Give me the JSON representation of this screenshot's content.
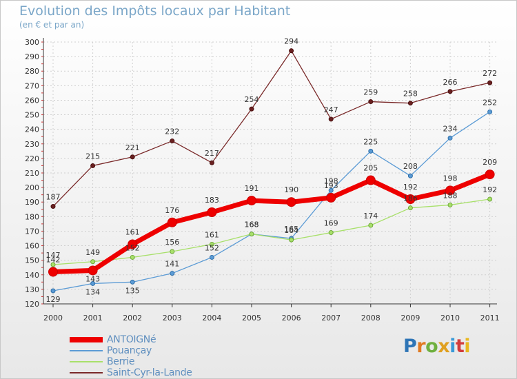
{
  "chart_data": {
    "type": "line",
    "title": "Evolution des Impôts locaux par Habitant",
    "subtitle": "(en € et par an)",
    "xlabel": "",
    "ylabel": "",
    "categories": [
      "2000",
      "2001",
      "2002",
      "2003",
      "2004",
      "2005",
      "2006",
      "2007",
      "2008",
      "2009",
      "2010",
      "2011"
    ],
    "ylim": [
      120,
      300
    ],
    "yticks": [
      "120",
      "130",
      "140",
      "150",
      "160",
      "170",
      "180",
      "190",
      "200",
      "210",
      "220",
      "230",
      "240",
      "250",
      "260",
      "270",
      "280",
      "290",
      "300"
    ],
    "grid": true,
    "legend_position": "bottom-left",
    "series": [
      {
        "name": "Saint-Cyr-la-Lande",
        "color": "#7a2a2a",
        "values": [
          187,
          215,
          221,
          232,
          217,
          254,
          294,
          247,
          259,
          258,
          266,
          272
        ]
      },
      {
        "name": "Pouançay",
        "color": "#5b9bd5",
        "values": [
          129,
          134,
          135,
          141,
          152,
          168,
          165,
          198,
          225,
          208,
          234,
          252
        ]
      },
      {
        "name": "Berrie",
        "color": "#a8e06a",
        "values": [
          147,
          149,
          152,
          156,
          161,
          168,
          164,
          169,
          174,
          186,
          188,
          192
        ]
      },
      {
        "name": "ANTOIGNé",
        "color": "#ee0000",
        "values": [
          142,
          143,
          161,
          176,
          183,
          191,
          190,
          193,
          205,
          192,
          198,
          209
        ]
      }
    ],
    "legend": [
      "ANTOIGNé",
      "Pouançay",
      "Berrie",
      "Saint-Cyr-la-Lande"
    ]
  },
  "brand": {
    "letters": [
      "P",
      "r",
      "o",
      "x",
      "i",
      "t",
      "i"
    ],
    "colors": [
      "#2e75b6",
      "#e07a22",
      "#6fb03f",
      "#e0a020",
      "#3a9ad9",
      "#d23c3c",
      "#e8b820"
    ]
  }
}
